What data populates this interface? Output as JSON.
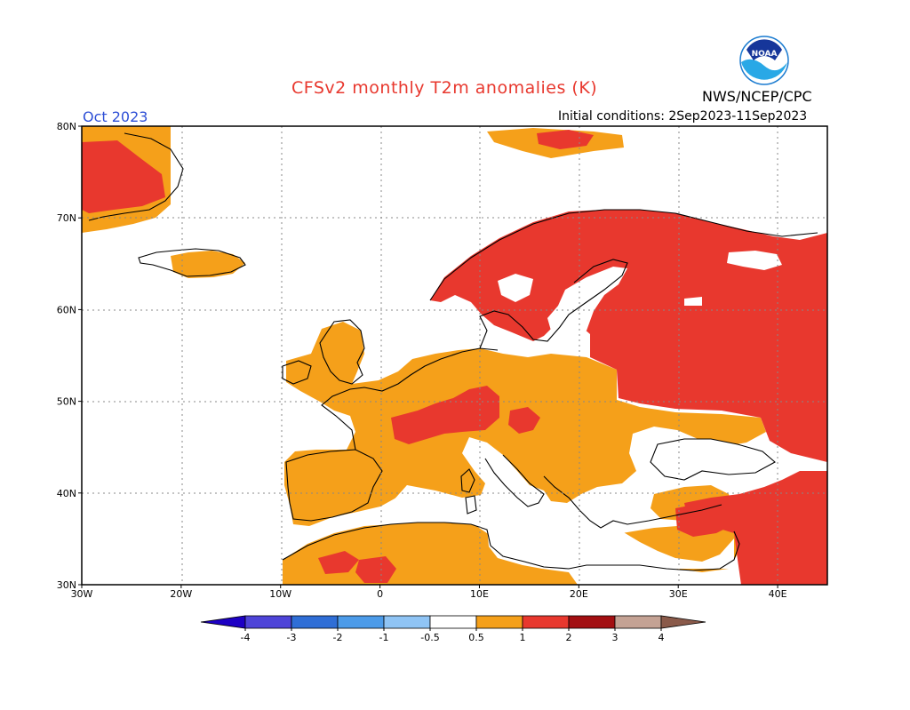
{
  "title": "CFSv2 monthly T2m anomalies (K)",
  "valid_month": "Oct 2023",
  "initial_conditions": "Initial conditions: 2Sep2023-11Sep2023",
  "organization": "NWS/NCEP/CPC",
  "logo_text": "NOAA",
  "map": {
    "region": "Europe",
    "lon_range": [
      -30,
      45
    ],
    "lat_range": [
      30,
      80
    ],
    "lon_labels": [
      "30W",
      "20W",
      "10W",
      "0",
      "10E",
      "20E",
      "30E",
      "40E"
    ],
    "lat_labels": [
      "80N",
      "70N",
      "60N",
      "50N",
      "40N",
      "30N"
    ],
    "grid": "dotted"
  },
  "colorbar": {
    "labels": [
      "-4",
      "-3",
      "-2",
      "-1",
      "-0.5",
      "0.5",
      "1",
      "2",
      "3",
      "4"
    ],
    "colors": [
      "#1d00c4",
      "#4e44d8",
      "#2f6ed6",
      "#4c9be9",
      "#8fc4f5",
      "#ffffff",
      "#f5a01a",
      "#e8382e",
      "#a30f12",
      "#c4a294",
      "#8a5a4a"
    ]
  },
  "anomaly_classes": {
    "orange": "0.5-1",
    "red": "1-2"
  }
}
